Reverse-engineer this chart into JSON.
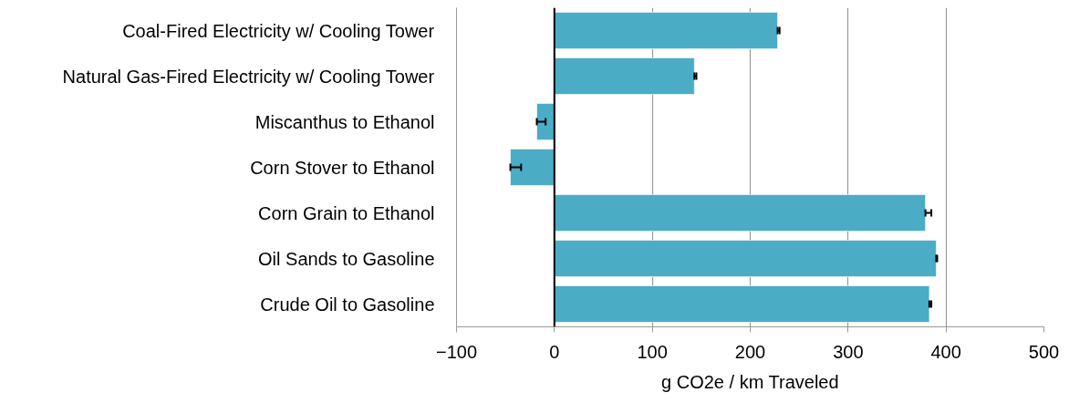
{
  "chart_data": {
    "type": "bar",
    "orientation": "horizontal",
    "xlabel": "g CO2e / km Traveled",
    "categories": [
      "Coal-Fired Electricity w/ Cooling Tower",
      "Natural Gas-Fired Electricity w/ Cooling Tower",
      "Miscanthus to Ethanol",
      "Corn Stover to Ethanol",
      "Corn Grain to Ethanol",
      "Oil Sands to Gasoline",
      "Crude Oil to Gasoline"
    ],
    "values": [
      228,
      143,
      -18,
      -45,
      379,
      390,
      383
    ],
    "errors": [
      [
        228,
        230
      ],
      [
        143,
        145
      ],
      [
        -18,
        -9
      ],
      [
        -45,
        -34
      ],
      [
        379,
        385
      ],
      [
        390,
        391
      ],
      [
        383,
        385
      ]
    ],
    "color": "#4bacc6",
    "xlim": [
      -100,
      500
    ],
    "xticks": [
      -100,
      0,
      100,
      200,
      300,
      400,
      500
    ],
    "grid": "x"
  }
}
